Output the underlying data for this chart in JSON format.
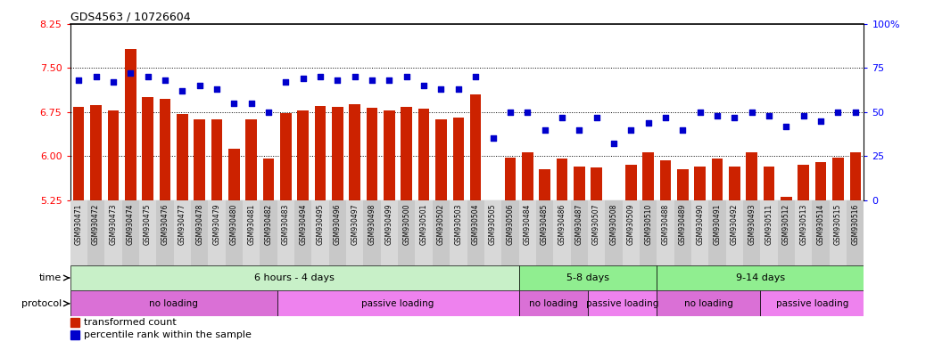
{
  "title": "GDS4563 / 10726604",
  "categories": [
    "GSM930471",
    "GSM930472",
    "GSM930473",
    "GSM930474",
    "GSM930475",
    "GSM930476",
    "GSM930477",
    "GSM930478",
    "GSM930479",
    "GSM930480",
    "GSM930481",
    "GSM930482",
    "GSM930483",
    "GSM930494",
    "GSM930495",
    "GSM930496",
    "GSM930497",
    "GSM930498",
    "GSM930499",
    "GSM930500",
    "GSM930501",
    "GSM930502",
    "GSM930503",
    "GSM930504",
    "GSM930505",
    "GSM930506",
    "GSM930484",
    "GSM930485",
    "GSM930486",
    "GSM930487",
    "GSM930507",
    "GSM930508",
    "GSM930509",
    "GSM930510",
    "GSM930488",
    "GSM930489",
    "GSM930490",
    "GSM930491",
    "GSM930492",
    "GSM930493",
    "GSM930511",
    "GSM930512",
    "GSM930513",
    "GSM930514",
    "GSM930515",
    "GSM930516"
  ],
  "bar_values": [
    6.83,
    6.87,
    6.78,
    7.82,
    7.0,
    6.97,
    6.72,
    6.62,
    6.63,
    6.13,
    6.62,
    5.95,
    6.73,
    6.77,
    6.85,
    6.83,
    6.88,
    6.82,
    6.77,
    6.83,
    6.8,
    6.62,
    6.65,
    7.05,
    5.25,
    5.98,
    6.07,
    5.78,
    5.95,
    5.82,
    5.8,
    5.25,
    5.85,
    6.07,
    5.92,
    5.78,
    5.82,
    5.95,
    5.82,
    6.07,
    5.82,
    5.3,
    5.85,
    5.9,
    5.98,
    6.07
  ],
  "dot_values": [
    68,
    70,
    67,
    72,
    70,
    68,
    62,
    65,
    63,
    55,
    55,
    50,
    67,
    69,
    70,
    68,
    70,
    68,
    68,
    70,
    65,
    63,
    63,
    70,
    35,
    50,
    50,
    40,
    47,
    40,
    47,
    32,
    40,
    44,
    47,
    40,
    50,
    48,
    47,
    50,
    48,
    42,
    48,
    45,
    50,
    50
  ],
  "ylim_left": [
    5.25,
    8.25
  ],
  "ylim_right": [
    0,
    100
  ],
  "yticks_left": [
    5.25,
    6.0,
    6.75,
    7.5,
    8.25
  ],
  "yticks_right": [
    0,
    25,
    50,
    75,
    100
  ],
  "bar_color": "#cc2200",
  "dot_color": "#0000cc",
  "time_groups": [
    {
      "label": "6 hours - 4 days",
      "start": 0,
      "end": 26,
      "color": "#c8f0c8"
    },
    {
      "label": "5-8 days",
      "start": 26,
      "end": 34,
      "color": "#90ee90"
    },
    {
      "label": "9-14 days",
      "start": 34,
      "end": 46,
      "color": "#90ee90"
    }
  ],
  "protocol_groups": [
    {
      "label": "no loading",
      "start": 0,
      "end": 12,
      "color": "#da70d6"
    },
    {
      "label": "passive loading",
      "start": 12,
      "end": 26,
      "color": "#ee82ee"
    },
    {
      "label": "no loading",
      "start": 26,
      "end": 30,
      "color": "#da70d6"
    },
    {
      "label": "passive loading",
      "start": 30,
      "end": 34,
      "color": "#ee82ee"
    },
    {
      "label": "no loading",
      "start": 34,
      "end": 40,
      "color": "#da70d6"
    },
    {
      "label": "passive loading",
      "start": 40,
      "end": 46,
      "color": "#ee82ee"
    }
  ]
}
